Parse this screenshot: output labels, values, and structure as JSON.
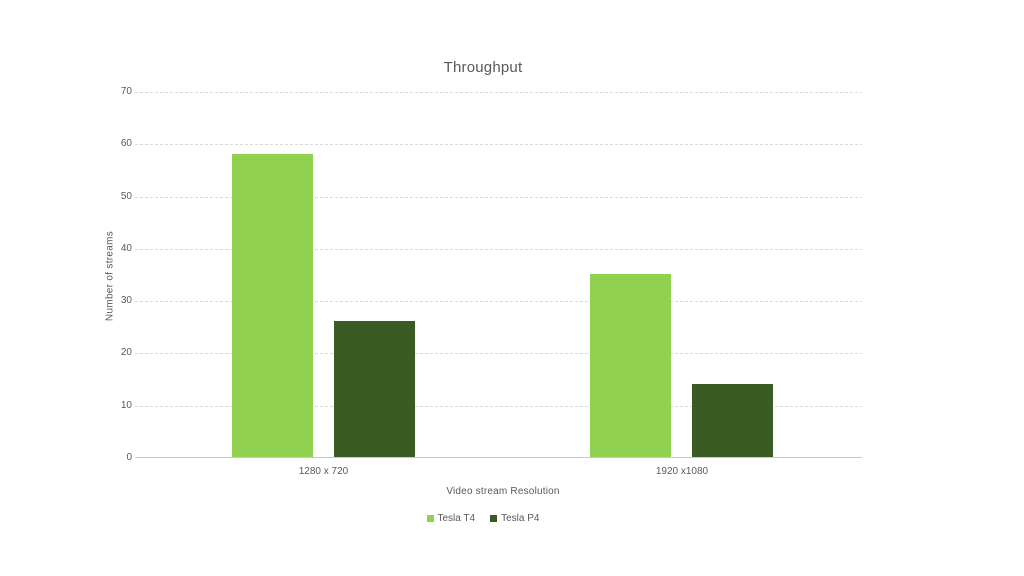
{
  "chart_data": {
    "type": "bar",
    "title": "Throughput",
    "xlabel": "Video stream Resolution",
    "ylabel": "Number of streams",
    "categories": [
      "1280 x 720",
      "1920 x1080"
    ],
    "series": [
      {
        "name": "Tesla T4",
        "color": "#92D050",
        "values": [
          58,
          35
        ]
      },
      {
        "name": "Tesla P4",
        "color": "#3A5B23",
        "values": [
          26,
          14
        ]
      }
    ],
    "ylim": [
      0,
      70
    ],
    "ytick_step": 10,
    "grid": true,
    "legend_position": "bottom"
  },
  "colors": {
    "text": "#595959",
    "gridline": "#D9D9D9",
    "axis_line": "#C9C9C9",
    "background": "#FFFFFF"
  }
}
